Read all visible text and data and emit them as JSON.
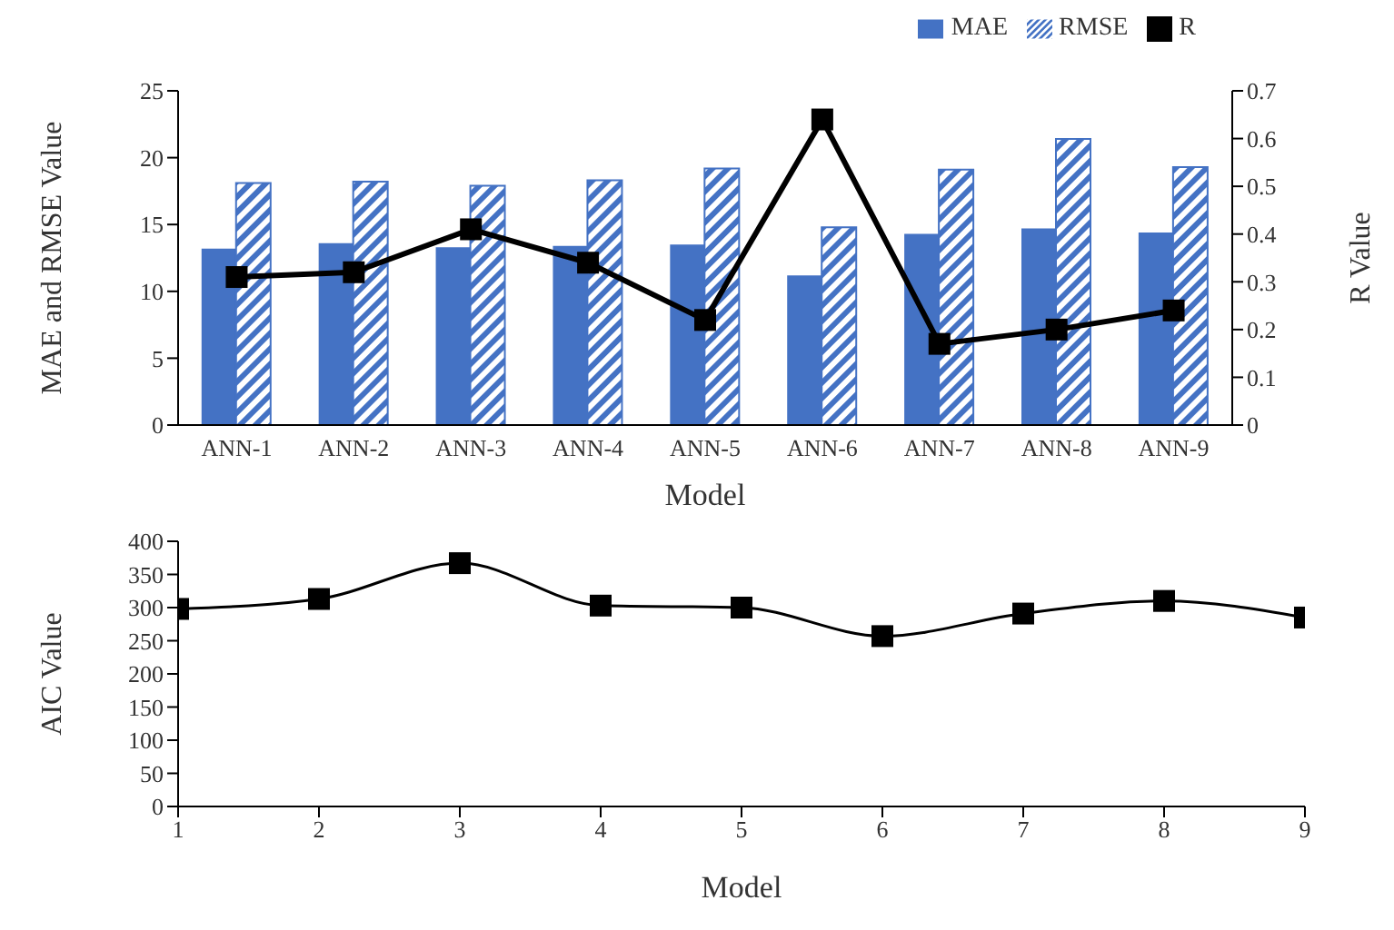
{
  "chart_data": [
    {
      "type": "bar",
      "categories": [
        "ANN-1",
        "ANN-2",
        "ANN-3",
        "ANN-4",
        "ANN-5",
        "ANN-6",
        "ANN-7",
        "ANN-8",
        "ANN-9"
      ],
      "xlabel": "Model",
      "ylabel": "MAE and RMSE Value",
      "y2label": "R Value",
      "series": [
        {
          "name": "MAE",
          "color": "#4472c4",
          "values": [
            13.2,
            13.6,
            13.3,
            13.4,
            13.5,
            11.2,
            14.3,
            14.7,
            14.4
          ]
        },
        {
          "name": "RMSE",
          "color": "#4472c4",
          "values": [
            18.1,
            18.2,
            17.9,
            18.3,
            19.2,
            14.8,
            19.1,
            21.4,
            19.3
          ]
        },
        {
          "name": "R",
          "type": "line",
          "axis": "y2",
          "color": "#000000",
          "values": [
            0.31,
            0.32,
            0.41,
            0.34,
            0.22,
            0.64,
            0.17,
            0.2,
            0.24
          ]
        }
      ],
      "ylim": [
        0,
        25
      ],
      "yticks": [
        0,
        5,
        10,
        15,
        20,
        25
      ],
      "y2lim": [
        0,
        0.7
      ],
      "y2ticks": [
        0,
        0.1,
        0.2,
        0.3,
        0.4,
        0.5,
        0.6,
        0.7
      ],
      "legend": "top right",
      "marker": "square",
      "grid": false
    },
    {
      "type": "line",
      "x": [
        1,
        2,
        3,
        4,
        5,
        6,
        7,
        8,
        9
      ],
      "xlabel": "Model",
      "ylabel": "AIC Value",
      "series": [
        {
          "color": "#000000",
          "values": [
            298,
            313,
            367,
            303,
            300,
            257,
            291,
            310,
            285
          ]
        }
      ],
      "xlim": [
        1,
        9
      ],
      "xticks": [
        1,
        2,
        3,
        4,
        5,
        6,
        7,
        8,
        9
      ],
      "ylim": [
        0,
        400
      ],
      "yticks": [
        0,
        50,
        100,
        150,
        200,
        250,
        300,
        350,
        400
      ],
      "marker": "square",
      "grid": false
    }
  ]
}
